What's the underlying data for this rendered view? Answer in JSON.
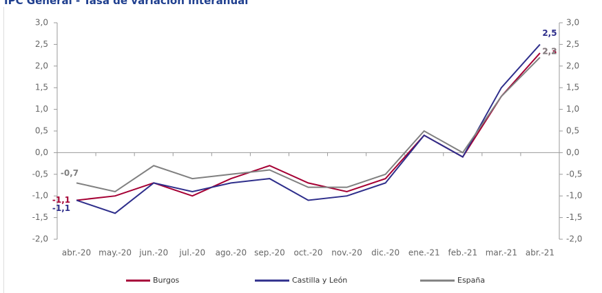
{
  "chart_data": {
    "type": "line",
    "title": "IPC General - Tasa de variación interanual",
    "categories": [
      "abr.-20",
      "may.-20",
      "jun.-20",
      "jul.-20",
      "ago.-20",
      "sep.-20",
      "oct.-20",
      "nov.-20",
      "dic.-20",
      "ene.-21",
      "feb.-21",
      "mar.-21",
      "abr.-21"
    ],
    "series": [
      {
        "name": "Burgos",
        "color": "#a50034",
        "values": [
          -1.1,
          -1.0,
          -0.7,
          -1.0,
          -0.6,
          -0.3,
          -0.7,
          -0.9,
          -0.6,
          0.4,
          -0.1,
          1.3,
          2.3
        ],
        "value_labels": [
          "-1,1",
          null,
          null,
          null,
          null,
          null,
          null,
          null,
          null,
          null,
          null,
          null,
          "2,3"
        ]
      },
      {
        "name": "Castilla y León",
        "color": "#2e2e8b",
        "values": [
          -1.1,
          -1.4,
          -0.7,
          -0.9,
          -0.7,
          -0.6,
          -1.1,
          -1.0,
          -0.7,
          0.4,
          -0.1,
          1.5,
          2.5
        ],
        "value_labels": [
          "-1,1",
          null,
          null,
          null,
          null,
          null,
          null,
          null,
          null,
          null,
          null,
          null,
          "2,5"
        ]
      },
      {
        "name": "España",
        "color": "#808080",
        "values": [
          -0.7,
          -0.9,
          -0.3,
          -0.6,
          -0.5,
          -0.4,
          -0.8,
          -0.8,
          -0.5,
          0.5,
          0.0,
          1.3,
          2.2
        ],
        "value_labels": [
          "-0,7",
          null,
          null,
          null,
          null,
          null,
          null,
          null,
          null,
          null,
          null,
          null,
          "2,2"
        ]
      }
    ],
    "ylim": [
      -2.0,
      3.0
    ],
    "yticks": [
      {
        "value": -2.0,
        "label": "-2,0"
      },
      {
        "value": -1.5,
        "label": "-1,5"
      },
      {
        "value": -1.0,
        "label": "-1,0"
      },
      {
        "value": -0.5,
        "label": "-0,5"
      },
      {
        "value": 0.0,
        "label": "0,0"
      },
      {
        "value": 0.5,
        "label": "0,5"
      },
      {
        "value": 1.0,
        "label": "1,0"
      },
      {
        "value": 1.5,
        "label": "1,5"
      },
      {
        "value": 2.0,
        "label": "2,0"
      },
      {
        "value": 2.5,
        "label": "2,5"
      },
      {
        "value": 3.0,
        "label": "3,0"
      }
    ],
    "y2lim": [
      -2.0,
      3.0
    ],
    "y2ticks": [
      {
        "value": -2.0,
        "label": "-2,0"
      },
      {
        "value": -1.5,
        "label": "-1,5"
      },
      {
        "value": -1.0,
        "label": "-1,0"
      },
      {
        "value": -0.5,
        "label": "-0,5"
      },
      {
        "value": 0.0,
        "label": "0,0"
      },
      {
        "value": 0.5,
        "label": "0,5"
      },
      {
        "value": 1.0,
        "label": "1,0"
      },
      {
        "value": 1.5,
        "label": "1,5"
      },
      {
        "value": 2.0,
        "label": "2,0"
      },
      {
        "value": 2.5,
        "label": "2,5"
      },
      {
        "value": 3.0,
        "label": "3,0"
      }
    ],
    "legend": "bottom"
  }
}
